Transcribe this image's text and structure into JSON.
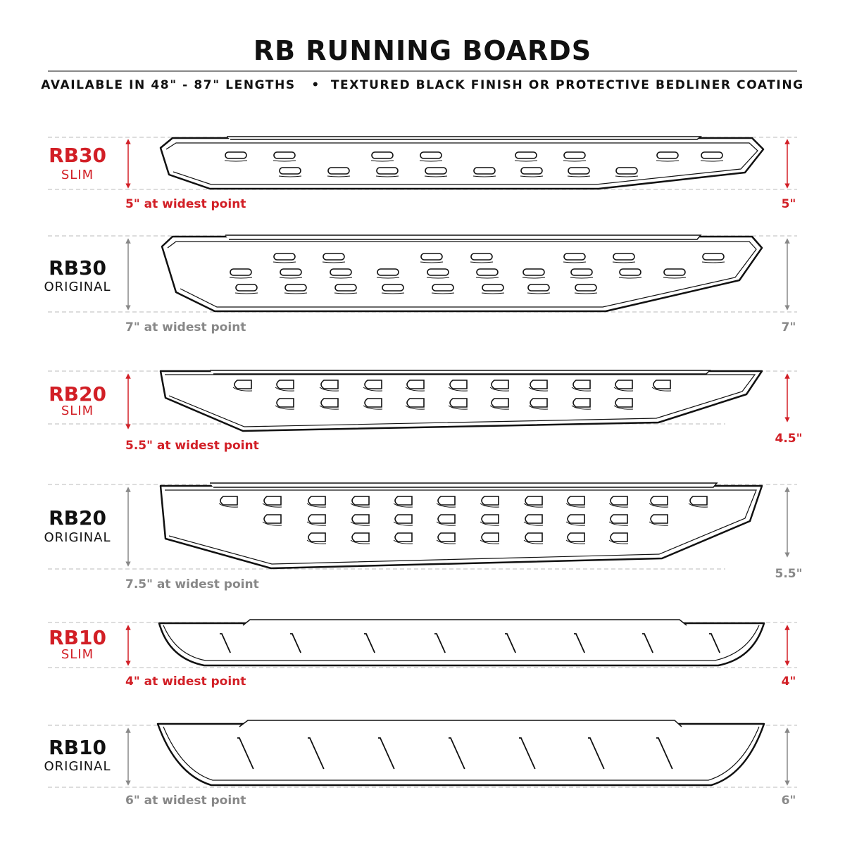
{
  "title": "RB RUNNING BOARDS",
  "subtitle": "AVAILABLE IN 48\" - 87\" LENGTHS   •  TEXTURED BLACK FINISH OR PROTECTIVE BEDLINER COATING",
  "colors": {
    "highlight": "#d21f26",
    "neutral": "#888888",
    "dark": "#111111"
  },
  "boards": [
    {
      "name": "RB30",
      "variant": "SLIM",
      "width_label": "5\" at widest point",
      "right_label": "5\"",
      "highlighted": true
    },
    {
      "name": "RB30",
      "variant": "ORIGINAL",
      "width_label": "7\" at widest point",
      "right_label": "7\"",
      "highlighted": false
    },
    {
      "name": "RB20",
      "variant": "SLIM",
      "width_label": "5.5\" at widest point",
      "right_label": "4.5\"",
      "highlighted": true
    },
    {
      "name": "RB20",
      "variant": "ORIGINAL",
      "width_label": "7.5\" at widest point",
      "right_label": "5.5\"",
      "highlighted": false
    },
    {
      "name": "RB10",
      "variant": "SLIM",
      "width_label": "4\" at widest point",
      "right_label": "4\"",
      "highlighted": true
    },
    {
      "name": "RB10",
      "variant": "ORIGINAL",
      "width_label": "6\" at widest point",
      "right_label": "6\"",
      "highlighted": false
    }
  ]
}
